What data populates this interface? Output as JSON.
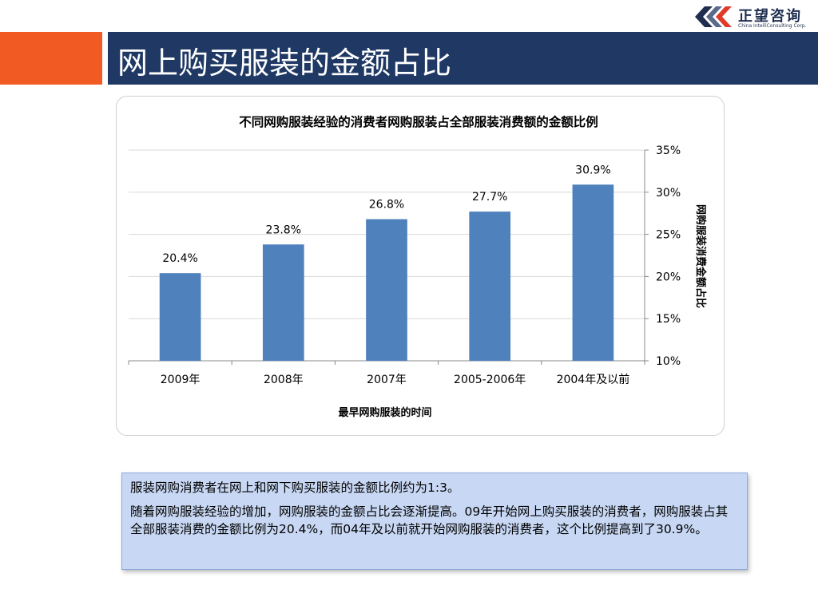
{
  "header": {
    "title": "网上购买服装的金额占比",
    "logo_text": "正望咨询",
    "logo_subtext": "China IntelliConsulting Corp."
  },
  "colors": {
    "accent": "#f15a22",
    "title_bar": "#1f3864",
    "bar": "#4f81bd"
  },
  "chart_data": {
    "type": "bar",
    "title": "不同网购服装经验的消费者网购服装占全部服装消费额的金额比例",
    "xlabel": "最早网购服装的时间",
    "ylabel": "网购服装消费金额占比",
    "categories": [
      "2009年",
      "2008年",
      "2007年",
      "2005-2006年",
      "2004年及以前"
    ],
    "values": [
      20.4,
      23.8,
      26.8,
      27.7,
      30.9
    ],
    "data_labels": [
      "20.4%",
      "23.8%",
      "26.8%",
      "27.7%",
      "30.9%"
    ],
    "ylim": [
      10,
      35
    ],
    "y_ticks": [
      10,
      15,
      20,
      25,
      30,
      35
    ],
    "y_tick_labels": [
      "10%",
      "15%",
      "20%",
      "25%",
      "30%",
      "35%"
    ],
    "y_axis_position": "right",
    "grid": true
  },
  "notes": {
    "line1": "服装网购消费者在网上和网下购买服装的金额比例约为1:3。",
    "line2": "随着网购服装经验的增加，网购服装的金额占比会逐渐提高。09年开始网上购买服装的消费者，网购服装占其全部服装消费的金额比例为20.4%，而04年及以前就开始网购服装的消费者，这个比例提高到了30.9%。"
  }
}
